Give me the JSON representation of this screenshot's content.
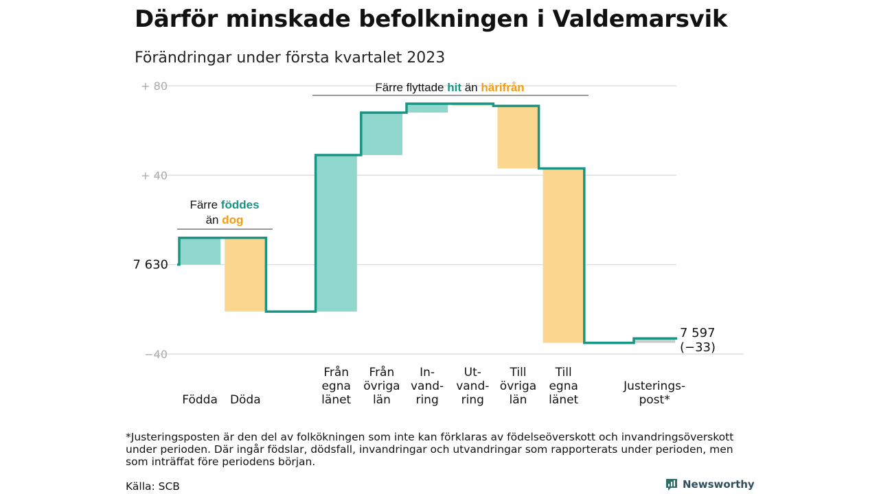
{
  "title": "Därför minskade befolkningen i Valdemarsvik",
  "subtitle": "Förändringar under första kvartalet 2023",
  "footnote": "*Justeringsposten är den del av folkökningen som inte kan förklaras av födelseöverskott och invandringsöverskott under perioden. Där ingår födslar, dödsfall, invandringar och utvandringar som rapporterats under perioden, men som inträffat före periodens början.",
  "source": "Källa: SCB",
  "brand": "Newsworthy",
  "colors": {
    "positive": "#8fd6cd",
    "negative": "#fbd68f",
    "line": "#1a9484",
    "adjust": "#cccccc",
    "grid": "#dddddd",
    "hit": "#1a9484",
    "harifran": "#f39c12"
  },
  "chart_data": {
    "type": "waterfall",
    "start_value": 7630,
    "start_label": "7 630",
    "end_label": "7 597",
    "end_change_label": "(−33)",
    "y_ticks": [
      {
        "value": 80,
        "label": "+ 80"
      },
      {
        "value": 40,
        "label": "+ 40"
      },
      {
        "value": 0,
        "label": ""
      },
      {
        "value": -40,
        "label": "−40"
      }
    ],
    "ylim": [
      -40,
      80
    ],
    "steps": [
      {
        "label": [
          "Födda"
        ],
        "change": 12,
        "type": "positive"
      },
      {
        "label": [
          "Döda"
        ],
        "change": -33,
        "type": "negative"
      },
      {
        "label": [],
        "change": 0,
        "type": "gap"
      },
      {
        "label": [
          "Från",
          "egna",
          "länet"
        ],
        "change": 70,
        "type": "positive"
      },
      {
        "label": [
          "Från",
          "övriga",
          "län"
        ],
        "change": 19,
        "type": "positive"
      },
      {
        "label": [
          "In-",
          "vand-",
          "ring"
        ],
        "change": 4,
        "type": "positive"
      },
      {
        "label": [
          "Ut-",
          "vand-",
          "ring"
        ],
        "change": -1,
        "type": "negative"
      },
      {
        "label": [
          "Till",
          "övriga",
          "län"
        ],
        "change": -28,
        "type": "negative"
      },
      {
        "label": [
          "Till",
          "egna",
          "länet"
        ],
        "change": -78,
        "type": "negative"
      },
      {
        "label": [],
        "change": 0,
        "type": "gap"
      },
      {
        "label": [
          "Justerings-",
          "post*"
        ],
        "change": 2,
        "type": "adjust"
      }
    ],
    "annotations": [
      {
        "parts": [
          [
            "Färre ",
            "plain"
          ],
          [
            "föddes",
            "hit"
          ]
        ],
        "parts2": [
          [
            "än ",
            "plain"
          ],
          [
            "dog",
            "harifran"
          ]
        ]
      },
      {
        "parts": [
          [
            "Färre flyttade ",
            "plain"
          ],
          [
            "hit",
            "hit"
          ],
          [
            " än ",
            "plain"
          ],
          [
            "härifrån",
            "harifran"
          ]
        ]
      }
    ]
  }
}
